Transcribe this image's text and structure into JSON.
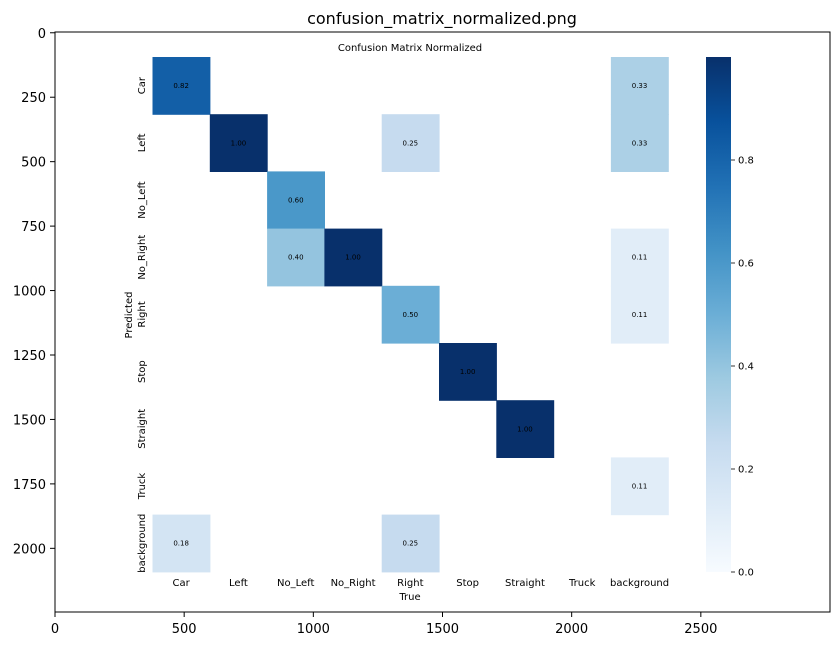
{
  "window": {
    "title": "confusion_matrix_normalized.png"
  },
  "outer_axes": {
    "xticks": [
      0,
      500,
      1000,
      1500,
      2000,
      2500
    ],
    "yticks": [
      0,
      250,
      500,
      750,
      1000,
      1250,
      1500,
      1750,
      2000
    ]
  },
  "chart_data": {
    "type": "heatmap",
    "title": "Confusion Matrix Normalized",
    "xlabel": "True",
    "ylabel": "Predicted",
    "x_categories": [
      "Car",
      "Left",
      "No_Left",
      "No_Right",
      "Right",
      "Stop",
      "Straight",
      "Truck",
      "background"
    ],
    "y_categories": [
      "Car",
      "Left",
      "No_Left",
      "No_Right",
      "Right",
      "Stop",
      "Straight",
      "Truck",
      "background"
    ],
    "cells": [
      {
        "row": 0,
        "col": 0,
        "value": 0.82,
        "label": "0.82"
      },
      {
        "row": 0,
        "col": 8,
        "value": 0.33,
        "label": "0.33"
      },
      {
        "row": 1,
        "col": 1,
        "value": 1.0,
        "label": "1.00"
      },
      {
        "row": 1,
        "col": 4,
        "value": 0.25,
        "label": "0.25"
      },
      {
        "row": 1,
        "col": 8,
        "value": 0.33,
        "label": "0.33"
      },
      {
        "row": 2,
        "col": 2,
        "value": 0.6,
        "label": "0.60"
      },
      {
        "row": 3,
        "col": 2,
        "value": 0.4,
        "label": "0.40"
      },
      {
        "row": 3,
        "col": 3,
        "value": 1.0,
        "label": "1.00"
      },
      {
        "row": 3,
        "col": 8,
        "value": 0.11,
        "label": "0.11"
      },
      {
        "row": 4,
        "col": 4,
        "value": 0.5,
        "label": "0.50"
      },
      {
        "row": 4,
        "col": 8,
        "value": 0.11,
        "label": "0.11"
      },
      {
        "row": 5,
        "col": 5,
        "value": 1.0,
        "label": "1.00"
      },
      {
        "row": 6,
        "col": 6,
        "value": 1.0,
        "label": "1.00"
      },
      {
        "row": 7,
        "col": 8,
        "value": 0.11,
        "label": "0.11"
      },
      {
        "row": 8,
        "col": 0,
        "value": 0.18,
        "label": "0.18"
      },
      {
        "row": 8,
        "col": 4,
        "value": 0.25,
        "label": "0.25"
      }
    ],
    "colorbar": {
      "min": 0.0,
      "max": 1.0,
      "ticks": [
        "0.0",
        "0.2",
        "0.4",
        "0.6",
        "0.8"
      ],
      "colormap": "Blues"
    }
  }
}
